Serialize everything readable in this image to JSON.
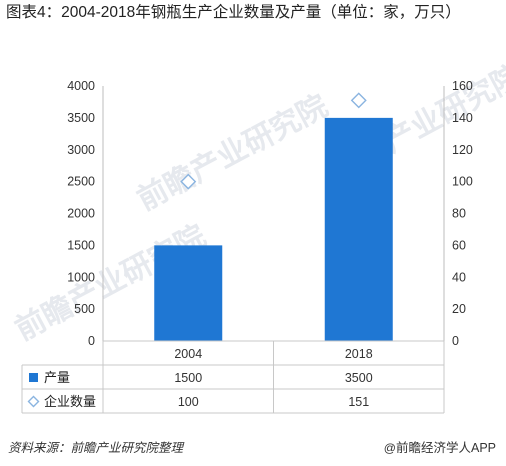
{
  "chart_data": {
    "type": "bar+scatter",
    "title": "图表4：2004-2018年钢瓶生产企业数量及产量（单位：家，万只）",
    "categories": [
      "2004",
      "2018"
    ],
    "series": [
      {
        "name": "产量",
        "type": "bar",
        "axis": "left",
        "color": "#1f77d3",
        "values": [
          1500,
          3500
        ]
      },
      {
        "name": "企业数量",
        "type": "scatter",
        "axis": "right",
        "color": "#8ab4e0",
        "values": [
          100,
          151
        ]
      }
    ],
    "y_left": {
      "min": 0,
      "max": 4000,
      "ticks": [
        0,
        500,
        1000,
        1500,
        2000,
        2500,
        3000,
        3500,
        4000
      ]
    },
    "y_right": {
      "min": 0,
      "max": 160,
      "ticks": [
        0,
        20,
        40,
        60,
        80,
        100,
        120,
        140,
        160
      ]
    },
    "grid": false,
    "legend": "data-table-bottom"
  },
  "watermark_text": [
    "前瞻产业研究院",
    "前瞻产业研究院",
    "前瞻产业研究院"
  ],
  "footer": {
    "source": "资料来源：前瞻产业研究院整理",
    "brand": "前瞻经济学人APP",
    "brand_icon": "at-icon"
  }
}
